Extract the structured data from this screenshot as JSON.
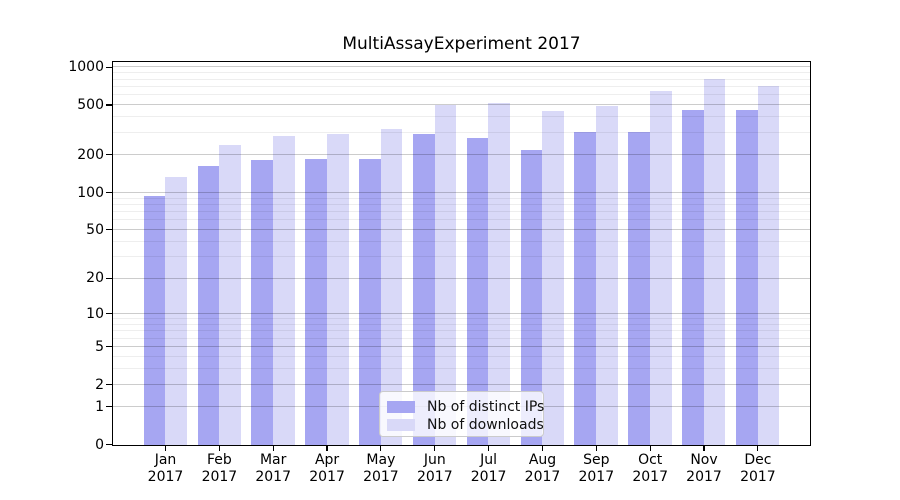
{
  "title": "MultiAssayExperiment 2017",
  "chart_data": {
    "type": "bar",
    "title": "MultiAssayExperiment 2017",
    "xlabel": "",
    "ylabel": "",
    "categories": [
      "Jan 2017",
      "Feb 2017",
      "Mar 2017",
      "Apr 2017",
      "May 2017",
      "Jun 2017",
      "Jul 2017",
      "Aug 2017",
      "Sep 2017",
      "Oct 2017",
      "Nov 2017",
      "Dec 2017"
    ],
    "series": [
      {
        "name": "Nb of distinct IPs",
        "color": "#a6a6f2",
        "values": [
          95,
          163,
          184,
          187,
          188,
          297,
          275,
          222,
          306,
          309,
          460,
          459
        ]
      },
      {
        "name": "Nb of downloads",
        "color": "#d9d9f8",
        "values": [
          133,
          242,
          287,
          293,
          322,
          500,
          517,
          450,
          495,
          652,
          808,
          715
        ]
      }
    ],
    "yscale": "log10(value+1)",
    "yticks": [
      0,
      1,
      2,
      5,
      10,
      20,
      50,
      100,
      200,
      500,
      1000
    ],
    "minor_gridlines": [
      3,
      4,
      6,
      7,
      8,
      9,
      30,
      40,
      60,
      70,
      80,
      90,
      300,
      400,
      600,
      700,
      800,
      900
    ],
    "ylim": [
      0,
      1090
    ],
    "grid": true,
    "legend_position": "lower-center"
  },
  "colors": {
    "background": "#ffffff",
    "bar_distinct_ips": "#a6a6f2",
    "bar_downloads": "#d9d9f8",
    "major_gridline": "#cccccc",
    "minor_gridline": "#efefef",
    "axis": "#000000",
    "legend_border": "#cbcbcb"
  }
}
